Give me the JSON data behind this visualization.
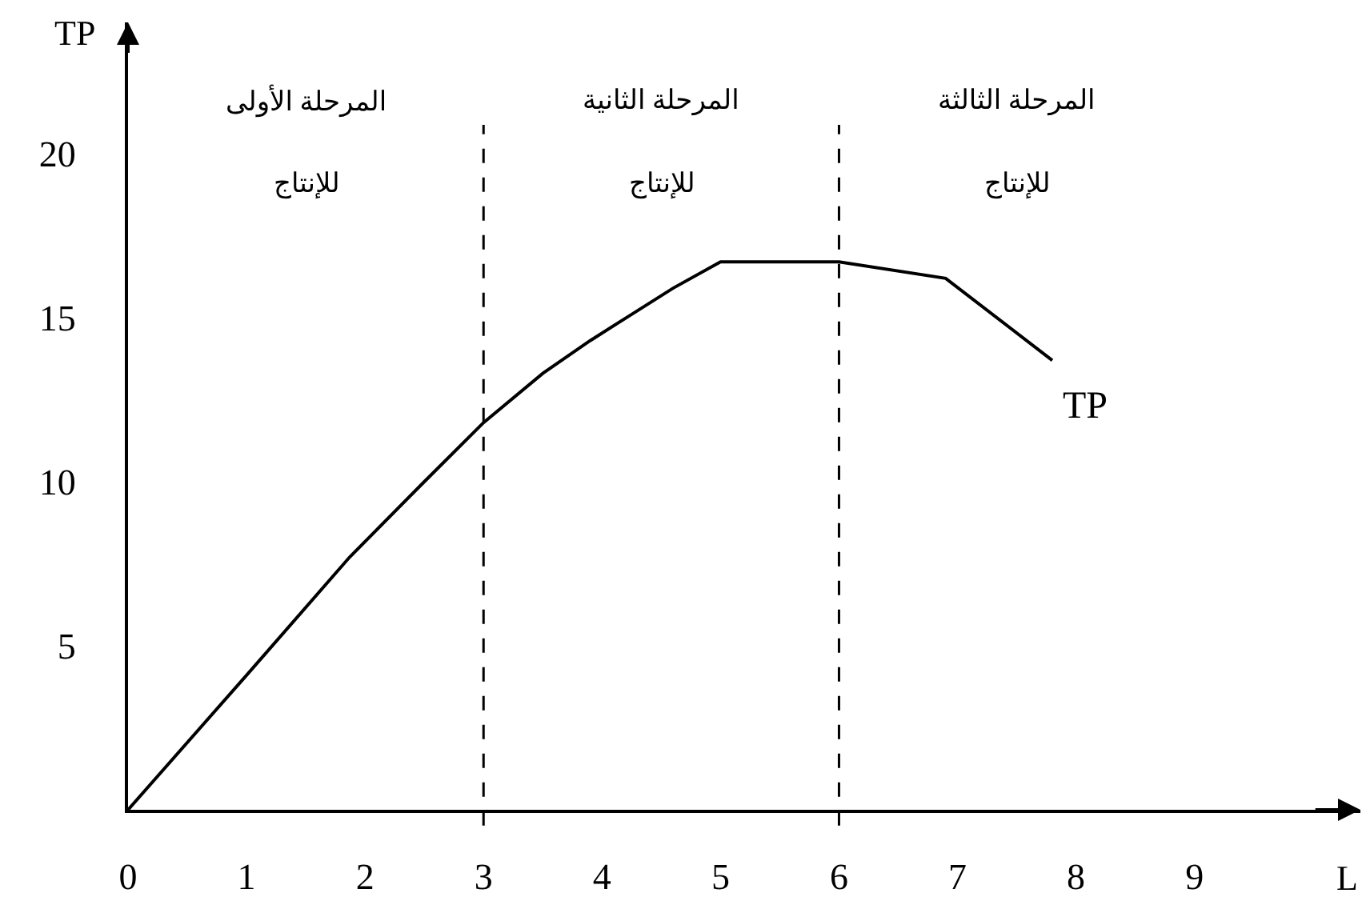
{
  "chart_data": {
    "type": "line",
    "xlabel": "L",
    "ylabel": "TP",
    "annotations": [
      "المرحلة الأولى\nللإنتاج",
      "المرحلة الثانية\nللإنتاج",
      "المرحلة الثالثة\nللإنتاج"
    ],
    "x": [
      0,
      1,
      1.87,
      2.5,
      3,
      3.5,
      3.9,
      4.25,
      4.6,
      5,
      6,
      6.9,
      7.8
    ],
    "series": [
      {
        "name": "TP",
        "color": "#000000",
        "values": [
          0,
          4.1,
          7.7,
          10,
          11.8,
          13.3,
          14.3,
          15.1,
          15.9,
          16.7,
          16.7,
          16.2,
          13.7
        ]
      }
    ],
    "xlim": [
      0,
      10.4
    ],
    "ylim": [
      0,
      24
    ],
    "xticks": [
      0,
      1,
      2,
      3,
      4,
      5,
      6,
      7,
      8,
      9
    ],
    "yticks": [
      5,
      10,
      15,
      20
    ],
    "ref_lines": [
      {
        "axis": "x",
        "value": 3,
        "color": "#000000",
        "line_style": "dashed"
      },
      {
        "axis": "x",
        "value": 6,
        "color": "#000000",
        "line_style": "dashed"
      }
    ],
    "grid": false,
    "legend": false,
    "marker": "none",
    "line_style": "solid"
  }
}
